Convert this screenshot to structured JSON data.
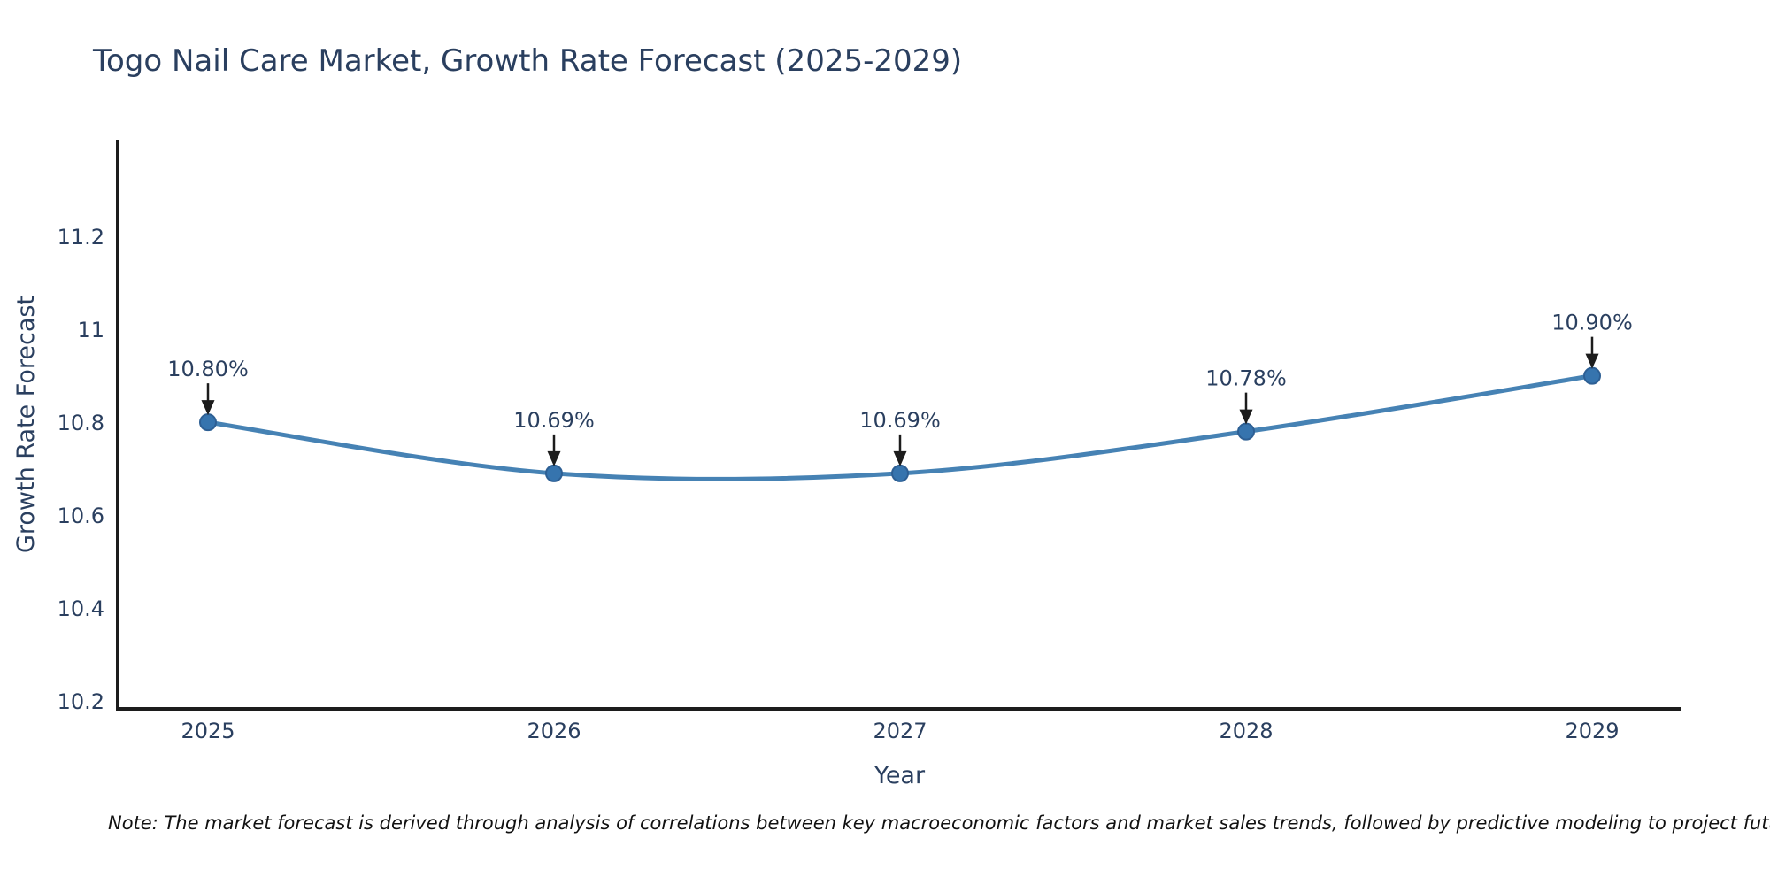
{
  "title": "Togo Nail Care Market, Growth Rate Forecast (2025-2029)",
  "note": "Note: The market forecast is derived through analysis of correlations between key macroeconomic factors and market sales trends, followed by predictive modeling to project future sal",
  "colors": {
    "text": "#2a3f5f",
    "axis": "#1c1c1c",
    "line": "#4682b4",
    "marker_fill": "#3674ae",
    "marker_edge": "#2d5f94",
    "arrow": "#1c1c1c",
    "note_text": "#111111",
    "background": "#ffffff"
  },
  "chart_data": {
    "type": "line",
    "title": "Togo Nail Care Market, Growth Rate Forecast (2025-2029)",
    "xlabel": "Year",
    "ylabel": "Growth Rate Forecast",
    "categories": [
      "2025",
      "2026",
      "2027",
      "2028",
      "2029"
    ],
    "values": [
      10.8,
      10.69,
      10.69,
      10.78,
      10.9
    ],
    "point_labels": [
      "10.80%",
      "10.69%",
      "10.69%",
      "10.78%",
      "10.90%"
    ],
    "yticks": [
      10.2,
      10.4,
      10.6,
      10.8,
      11.0,
      11.2
    ],
    "ytick_labels": [
      "10.2",
      "10.4",
      "10.6",
      "10.8",
      "11",
      "11.2"
    ],
    "ylim": [
      10.183,
      11.408
    ],
    "line_shape": "spline",
    "grid": false,
    "legend": false,
    "annotations_arrow": true
  }
}
